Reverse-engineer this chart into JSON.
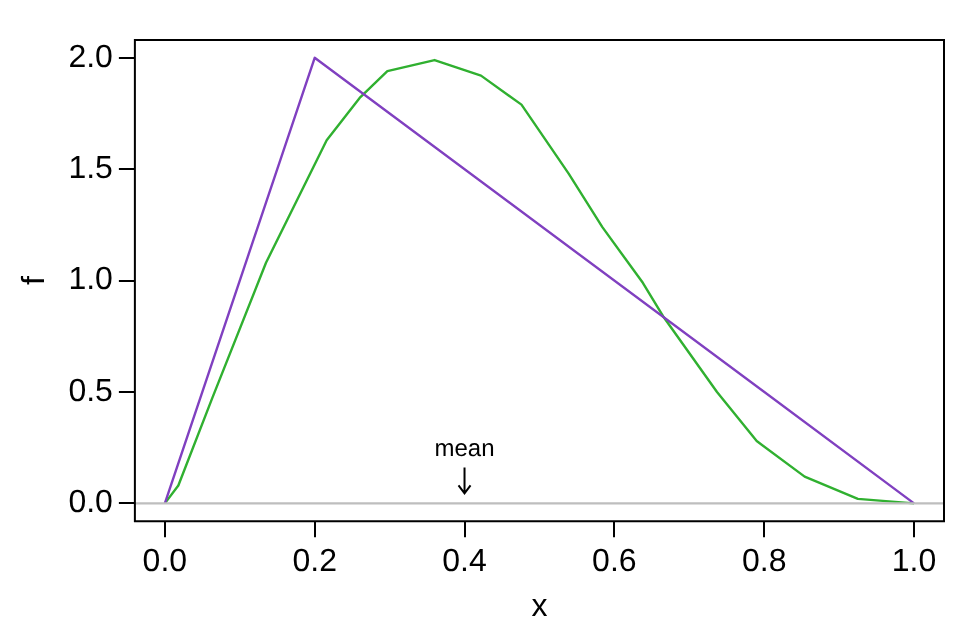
{
  "chart_data": {
    "type": "line",
    "xlabel": "x",
    "ylabel": "f",
    "xlim": [
      -0.04,
      1.04
    ],
    "ylim": [
      -0.08,
      2.08
    ],
    "xticks": [
      {
        "value": 0,
        "label": "0.0"
      },
      {
        "value": 0.2,
        "label": "0.2"
      },
      {
        "value": 0.4,
        "label": "0.4"
      },
      {
        "value": 0.6,
        "label": "0.6"
      },
      {
        "value": 0.8,
        "label": "0.8"
      },
      {
        "value": 1,
        "label": "1.0"
      }
    ],
    "yticks": [
      {
        "value": 0,
        "label": "0.0"
      },
      {
        "value": 0.5,
        "label": "0.5"
      },
      {
        "value": 1,
        "label": "1.0"
      },
      {
        "value": 1.5,
        "label": "1.5"
      },
      {
        "value": 2,
        "label": "2.0"
      }
    ],
    "series": [
      {
        "color": "#8040c0",
        "x": [
          0,
          0.2,
          1
        ],
        "values": [
          0,
          2,
          0
        ]
      },
      {
        "color": "#30b030",
        "x": [
          0,
          0.018,
          0.063,
          0.135,
          0.216,
          0.26,
          0.297,
          0.36,
          0.422,
          0.476,
          0.539,
          0.584,
          0.638,
          0.665,
          0.737,
          0.79,
          0.854,
          0.925,
          1
        ],
        "values": [
          0,
          0.08,
          0.47,
          1.08,
          1.63,
          1.82,
          1.94,
          1.99,
          1.92,
          1.79,
          1.48,
          1.24,
          0.99,
          0.84,
          0.5,
          0.28,
          0.12,
          0.02,
          0
        ]
      }
    ],
    "ref_lines": [
      {
        "axis": "y",
        "value": 0,
        "color": "#bebebe"
      }
    ],
    "annotations": [
      {
        "text": "mean",
        "x": 0.4,
        "y": 0
      }
    ],
    "grid": false,
    "legend": false,
    "marker": "none",
    "line_style": "solid"
  }
}
